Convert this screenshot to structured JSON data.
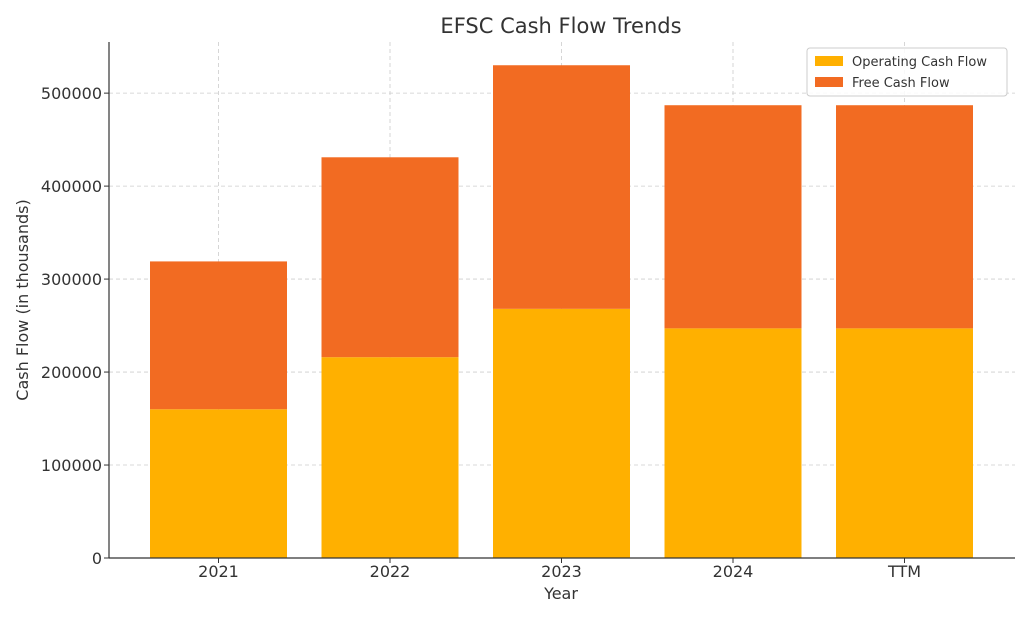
{
  "chart_data": {
    "type": "bar",
    "stacked": true,
    "title": "EFSC Cash Flow Trends",
    "xlabel": "Year",
    "ylabel": "Cash Flow (in thousands)",
    "categories": [
      "2021",
      "2022",
      "2023",
      "2024",
      "TTM"
    ],
    "series": [
      {
        "name": "Operating Cash Flow",
        "color": "#FFB000",
        "values": [
          160000,
          216000,
          268000,
          247000,
          247000
        ]
      },
      {
        "name": "Free Cash Flow",
        "color": "#F26B22",
        "values": [
          159000,
          215000,
          262000,
          240000,
          240000
        ]
      }
    ],
    "ylim": [
      0,
      555000
    ],
    "yticks": [
      0,
      100000,
      200000,
      300000,
      400000,
      500000
    ],
    "grid": true,
    "legend_position": "top-right"
  }
}
